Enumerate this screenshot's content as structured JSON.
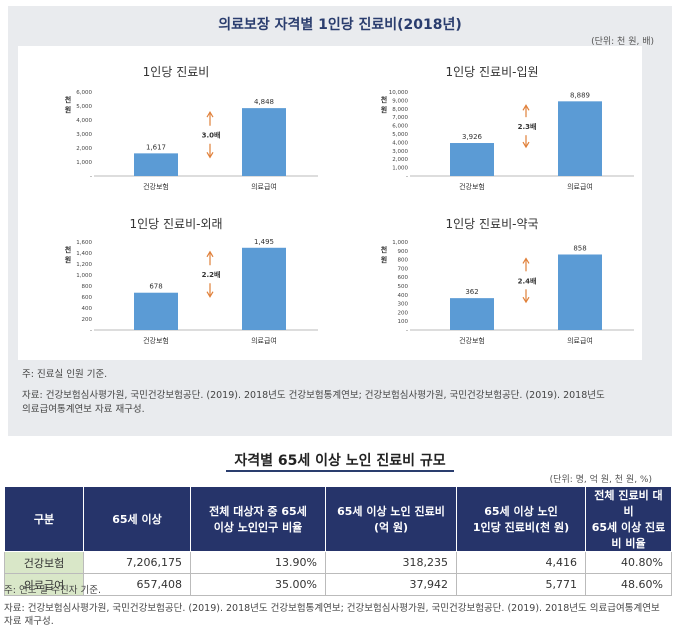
{
  "figure": {
    "title": "의료보장 자격별 1인당 진료비(2018년)",
    "unit": "(단위: 천 원, 배)"
  },
  "chart_data": [
    {
      "type": "bar",
      "title": "1인당 진료비",
      "ylabel": "천 원",
      "categories": [
        "건강보험",
        "의료급여"
      ],
      "values": [
        1617,
        4848
      ],
      "value_labels": [
        "1,617",
        "4,848"
      ],
      "ylim": [
        0,
        6000
      ],
      "yticks": [
        "-",
        "1,000",
        "2,000",
        "3,000",
        "4,000",
        "5,000",
        "6,000"
      ],
      "ratio_label": "3.0배",
      "bar_color": "#5b9bd5"
    },
    {
      "type": "bar",
      "title": "1인당 진료비-입원",
      "ylabel": "천 원",
      "categories": [
        "건강보험",
        "의료급여"
      ],
      "values": [
        3926,
        8889
      ],
      "value_labels": [
        "3,926",
        "8,889"
      ],
      "ylim": [
        0,
        10000
      ],
      "yticks": [
        "-",
        "1,000",
        "2,000",
        "3,000",
        "4,000",
        "5,000",
        "6,000",
        "7,000",
        "8,000",
        "9,000",
        "10,000"
      ],
      "ratio_label": "2.3배",
      "bar_color": "#5b9bd5"
    },
    {
      "type": "bar",
      "title": "1인당 진료비-외래",
      "ylabel": "천 원",
      "categories": [
        "건강보험",
        "의료급여"
      ],
      "values": [
        678,
        1495
      ],
      "value_labels": [
        "678",
        "1,495"
      ],
      "ylim": [
        0,
        1600
      ],
      "yticks": [
        "-",
        "200",
        "400",
        "600",
        "800",
        "1,000",
        "1,200",
        "1,400",
        "1,600"
      ],
      "ratio_label": "2.2배",
      "bar_color": "#5b9bd5"
    },
    {
      "type": "bar",
      "title": "1인당 진료비-약국",
      "ylabel": "천 원",
      "categories": [
        "건강보험",
        "의료급여"
      ],
      "values": [
        362,
        858
      ],
      "value_labels": [
        "362",
        "858"
      ],
      "ylim": [
        0,
        1000
      ],
      "yticks": [
        "-",
        "100",
        "200",
        "300",
        "400",
        "500",
        "600",
        "700",
        "800",
        "900",
        "1,000"
      ],
      "ratio_label": "2.4배",
      "bar_color": "#5b9bd5"
    }
  ],
  "figure_notes": {
    "note": "주: 진료실 인원 기준.",
    "source_line1": "자료: 건강보험심사평가원, 국민건강보험공단. (2019). 2018년도 건강보험통계연보; 건강보험심사평가원, 국민건강보험공단. (2019). 2018년도",
    "source_line2": "의료급여통계연보 자료 재구성."
  },
  "table": {
    "title": "자격별 65세 이상 노인 진료비 규모",
    "unit": "(단위: 명, 억 원, 천 원, %)",
    "headers": [
      [
        "구분"
      ],
      [
        "65세 이상"
      ],
      [
        "전체 대상자 중 65세",
        "이상 노인인구 비율"
      ],
      [
        "65세 이상 노인 진료비",
        "(억 원)"
      ],
      [
        "65세 이상 노인",
        "1인당 진료비(천 원)"
      ],
      [
        "전체 진료비 대비",
        "65세 이상 진료비 비율"
      ]
    ],
    "rows": [
      [
        "건강보험",
        "7,206,175",
        "13.90%",
        "318,235",
        "4,416",
        "40.80%"
      ],
      [
        "의료급여",
        "657,408",
        "35.00%",
        "37,942",
        "5,771",
        "48.60%"
      ]
    ],
    "note": "주: 연도 말 수진자 기준.",
    "source_line1": "자료: 건강보험심사평가원, 국민건강보험공단. (2019). 2018년도 건강보험통계연보; 건강보험심사평가원, 국민건강보험공단. (2019). 2018년도 의료급여통계연보",
    "source_line2": "자료 재구성."
  },
  "colors": {
    "bar": "#5b9bd5",
    "arrow": "#e0803a",
    "table_header_bg": "#26346a",
    "row_header_bg": "#d9e7c8",
    "panel_bg": "#e9ebee"
  }
}
